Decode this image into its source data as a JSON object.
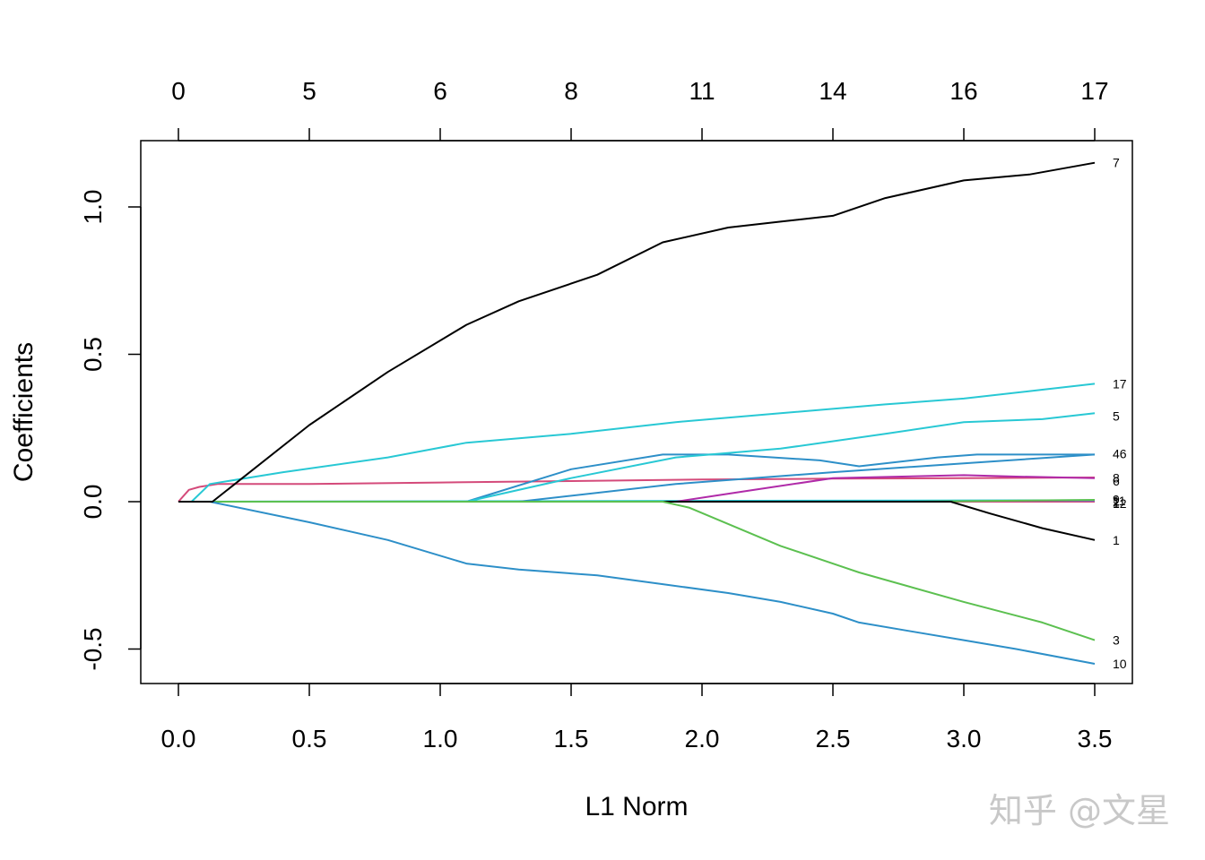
{
  "chart_data": {
    "type": "line",
    "xlabel": "L1 Norm",
    "ylabel": "Coefficients",
    "xlim": [
      0,
      3.5
    ],
    "ylim": [
      -0.6,
      1.2
    ],
    "x_ticks": [
      "0.0",
      "0.5",
      "1.0",
      "1.5",
      "2.0",
      "2.5",
      "3.0",
      "3.5"
    ],
    "y_ticks": [
      "-0.5",
      "0.0",
      "0.5",
      "1.0"
    ],
    "top_axis": {
      "positions": [
        0,
        0.5,
        1.0,
        1.5,
        2.0,
        2.5,
        3.0,
        3.5
      ],
      "labels": [
        "0",
        "5",
        "6",
        "8",
        "11",
        "14",
        "16",
        "17"
      ]
    },
    "series": [
      {
        "name": "7",
        "color": "#000000",
        "x": [
          0,
          0.13,
          0.5,
          0.8,
          1.1,
          1.3,
          1.6,
          1.85,
          2.1,
          2.3,
          2.5,
          2.7,
          3.0,
          3.25,
          3.5
        ],
        "y": [
          0,
          0,
          0.26,
          0.44,
          0.6,
          0.68,
          0.77,
          0.88,
          0.93,
          0.95,
          0.97,
          1.03,
          1.09,
          1.11,
          1.15
        ]
      },
      {
        "name": "17",
        "color": "#28c8d4",
        "x": [
          0,
          0.05,
          0.12,
          0.4,
          0.8,
          1.1,
          1.5,
          1.9,
          2.3,
          2.7,
          3.0,
          3.3,
          3.5
        ],
        "y": [
          0,
          0,
          0.06,
          0.1,
          0.15,
          0.2,
          0.23,
          0.27,
          0.3,
          0.33,
          0.35,
          0.38,
          0.4
        ]
      },
      {
        "name": "5",
        "color": "#28c8d4",
        "x": [
          0,
          1.1,
          1.5,
          1.9,
          2.3,
          2.7,
          3.0,
          3.3,
          3.5
        ],
        "y": [
          0,
          0,
          0.08,
          0.15,
          0.18,
          0.23,
          0.27,
          0.28,
          0.3
        ]
      },
      {
        "name": "16",
        "color": "#2d8fc8",
        "x": [
          0,
          1.1,
          1.5,
          1.85,
          2.1,
          2.45,
          2.6,
          2.9,
          3.05,
          3.3,
          3.5
        ],
        "y": [
          0,
          0,
          0.11,
          0.16,
          0.16,
          0.14,
          0.12,
          0.15,
          0.16,
          0.16,
          0.16
        ]
      },
      {
        "name": "4",
        "color": "#2d8fc8",
        "x": [
          0,
          1.3,
          1.9,
          2.5,
          3.0,
          3.5
        ],
        "y": [
          0,
          0,
          0.06,
          0.1,
          0.13,
          0.16
        ]
      },
      {
        "name": "6",
        "color": "#d44a7a",
        "x": [
          0,
          0.04,
          0.08,
          0.15,
          0.5,
          1.0,
          1.5,
          2.0,
          2.5,
          3.0,
          3.5
        ],
        "y": [
          0,
          0.04,
          0.05,
          0.06,
          0.06,
          0.065,
          0.07,
          0.075,
          0.078,
          0.08,
          0.082
        ]
      },
      {
        "name": "8",
        "color": "#b02aa8",
        "x": [
          0,
          1.9,
          2.2,
          2.5,
          3.0,
          3.2,
          3.5
        ],
        "y": [
          0,
          0,
          0.04,
          0.08,
          0.09,
          0.085,
          0.08
        ]
      },
      {
        "name": "1",
        "color": "#000000",
        "x": [
          0,
          2.95,
          3.1,
          3.3,
          3.5
        ],
        "y": [
          0,
          0,
          -0.04,
          -0.09,
          -0.13
        ]
      },
      {
        "name": "3",
        "color": "#5cc050",
        "x": [
          0,
          1.85,
          1.95,
          2.3,
          2.6,
          3.0,
          3.3,
          3.5
        ],
        "y": [
          0,
          0,
          -0.02,
          -0.15,
          -0.24,
          -0.34,
          -0.41,
          -0.47
        ]
      },
      {
        "name": "10",
        "color": "#2d8fc8",
        "x": [
          0,
          0.12,
          0.5,
          0.8,
          1.1,
          1.3,
          1.6,
          1.85,
          2.1,
          2.3,
          2.5,
          2.6,
          2.8,
          3.0,
          3.2,
          3.5
        ],
        "y": [
          0,
          0,
          -0.07,
          -0.13,
          -0.21,
          -0.23,
          -0.25,
          -0.28,
          -0.31,
          -0.34,
          -0.38,
          -0.41,
          -0.44,
          -0.47,
          -0.5,
          -0.55
        ]
      },
      {
        "name": "9",
        "color": "#28c8d4",
        "x": [
          0,
          3.5
        ],
        "y": [
          0,
          0.005
        ]
      },
      {
        "name": "2",
        "color": "#d44a7a",
        "x": [
          0,
          3.5
        ],
        "y": [
          0,
          0
        ]
      },
      {
        "name": "11",
        "color": "#b02aa8",
        "x": [
          0,
          3.5
        ],
        "y": [
          0,
          0.003
        ]
      },
      {
        "name": "12",
        "color": "#5cc050",
        "x": [
          0,
          2.8,
          3.5
        ],
        "y": [
          0,
          0,
          0.006
        ]
      }
    ],
    "end_labels": [
      {
        "text": "7",
        "y": 1.15
      },
      {
        "text": "17",
        "y": 0.4
      },
      {
        "text": "5",
        "y": 0.29
      },
      {
        "text": "46",
        "y": 0.162
      },
      {
        "text": "8",
        "y": 0.08
      },
      {
        "text": "6",
        "y": 0.07
      },
      {
        "text": "9",
        "y": 0.008
      },
      {
        "text": "11",
        "y": 0.003
      },
      {
        "text": "2",
        "y": -0.002
      },
      {
        "text": "12",
        "y": -0.006
      },
      {
        "text": "1",
        "y": -0.13
      },
      {
        "text": "3",
        "y": -0.47
      },
      {
        "text": "10",
        "y": -0.55
      }
    ]
  },
  "watermark": "知乎 @文星"
}
